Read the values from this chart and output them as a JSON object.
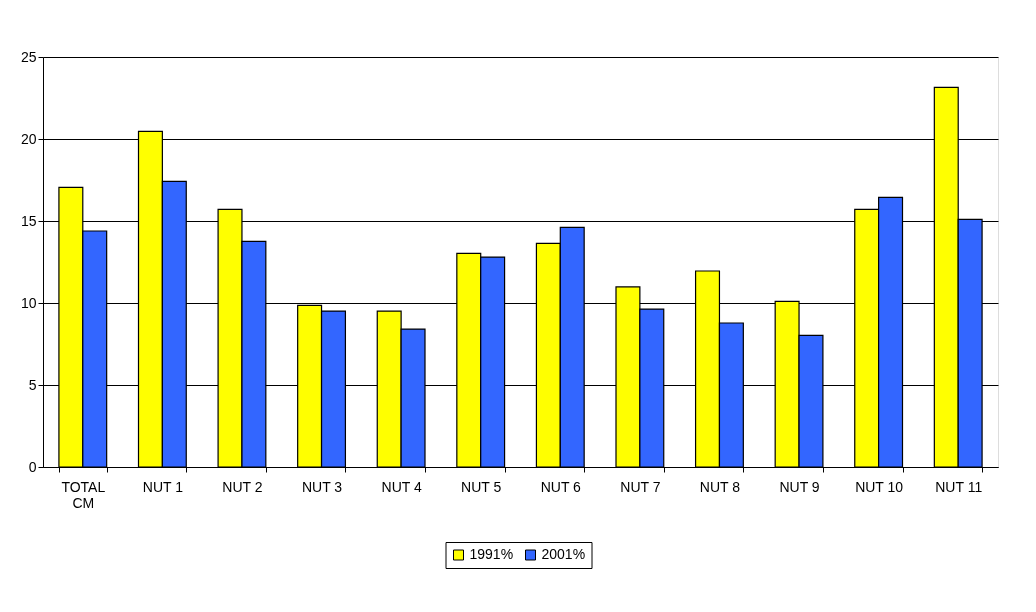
{
  "chart_data": {
    "type": "bar",
    "categories": [
      "TOTAL\nCM",
      "NUT 1",
      "NUT 2",
      "NUT 3",
      "NUT 4",
      "NUT 5",
      "NUT 6",
      "NUT 7",
      "NUT 8",
      "NUT 9",
      "NUT 10",
      "NUT 11"
    ],
    "series": [
      {
        "name": "1991%",
        "color": "#ffff00",
        "values": [
          17.05,
          20.47,
          15.71,
          9.86,
          9.51,
          13.03,
          13.64,
          10.98,
          11.95,
          10.1,
          15.71,
          23.15
        ]
      },
      {
        "name": "2001%",
        "color": "#3366ff",
        "values": [
          14.39,
          17.42,
          13.76,
          9.51,
          8.41,
          12.8,
          14.61,
          9.63,
          8.78,
          8.03,
          16.44,
          15.1
        ]
      }
    ],
    "ylim": [
      0,
      25
    ],
    "yticks": [
      0,
      5,
      10,
      15,
      20,
      25
    ],
    "grid": "y",
    "legend": "bottom"
  }
}
